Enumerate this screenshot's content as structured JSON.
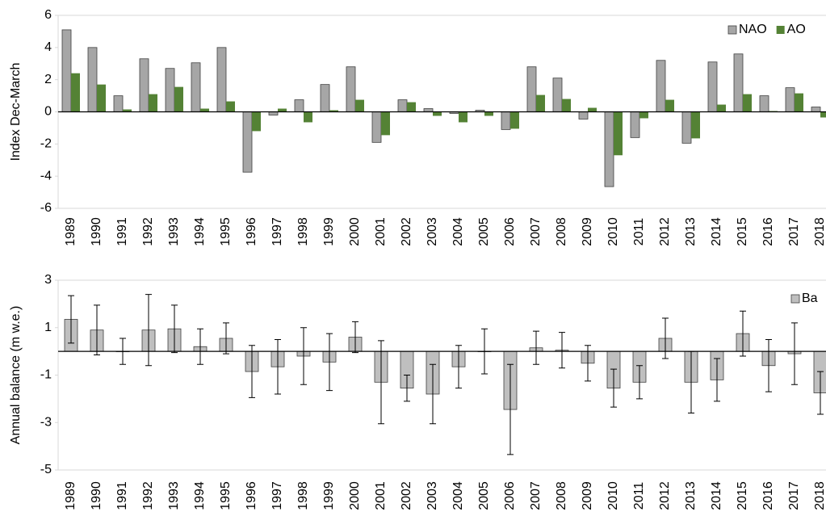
{
  "chart_data": [
    {
      "type": "bar",
      "y_label": "Index Dec-March",
      "categories": [
        "1989",
        "1990",
        "1991",
        "1992",
        "1993",
        "1994",
        "1995",
        "1996",
        "1997",
        "1998",
        "1999",
        "2000",
        "2001",
        "2002",
        "2003",
        "2004",
        "2005",
        "2006",
        "2007",
        "2008",
        "2009",
        "2010",
        "2011",
        "2012",
        "2013",
        "2014",
        "2015",
        "2016",
        "2017",
        "2018"
      ],
      "series": [
        {
          "name": "NAO",
          "color": "#a6a6a6",
          "values": [
            5.1,
            4.0,
            1.0,
            3.3,
            2.7,
            3.05,
            4.0,
            -3.75,
            -0.2,
            0.75,
            1.7,
            2.8,
            -1.9,
            0.75,
            0.2,
            -0.1,
            0.1,
            -1.1,
            2.8,
            2.1,
            -0.45,
            -4.65,
            -1.6,
            3.2,
            -1.95,
            3.1,
            3.6,
            1.0,
            1.5,
            0.3
          ]
        },
        {
          "name": "AO",
          "color": "#548235",
          "values": [
            2.4,
            1.7,
            0.15,
            1.1,
            1.55,
            0.2,
            0.65,
            -1.2,
            0.2,
            -0.65,
            0.1,
            0.75,
            -1.45,
            0.6,
            -0.25,
            -0.65,
            -0.25,
            -1.05,
            1.05,
            0.8,
            0.25,
            -2.7,
            -0.4,
            0.75,
            -1.65,
            0.45,
            1.1,
            0.05,
            1.15,
            -0.35
          ]
        }
      ],
      "ylim": [
        -6,
        6
      ],
      "yticks": [
        -6,
        -4,
        -2,
        0,
        2,
        4,
        6
      ],
      "legend": "upper right"
    },
    {
      "type": "bar",
      "y_label": "Annual balance (m w.e.)",
      "categories": [
        "1989",
        "1990",
        "1991",
        "1992",
        "1993",
        "1994",
        "1995",
        "1996",
        "1997",
        "1998",
        "1999",
        "2000",
        "2001",
        "2002",
        "2003",
        "2004",
        "2005",
        "2006",
        "2007",
        "2008",
        "2009",
        "2010",
        "2011",
        "2012",
        "2013",
        "2014",
        "2015",
        "2016",
        "2017",
        "2018"
      ],
      "series": [
        {
          "name": "Ba",
          "color": "#bfbfbf",
          "values": [
            1.35,
            0.9,
            0.0,
            0.9,
            0.95,
            0.2,
            0.55,
            -0.85,
            -0.65,
            -0.2,
            -0.45,
            0.6,
            -1.3,
            -1.55,
            -1.8,
            -0.65,
            0.0,
            -2.45,
            0.15,
            0.05,
            -0.5,
            -1.55,
            -1.3,
            0.55,
            -1.3,
            -1.2,
            0.75,
            -0.6,
            -0.1,
            -1.75
          ],
          "errors": [
            1.0,
            1.05,
            0.55,
            1.5,
            1.0,
            0.75,
            0.65,
            1.1,
            1.15,
            1.2,
            1.2,
            0.65,
            1.75,
            0.55,
            1.25,
            0.9,
            0.95,
            1.9,
            0.7,
            0.75,
            0.75,
            0.8,
            0.7,
            0.85,
            1.3,
            0.9,
            0.95,
            1.1,
            1.3,
            0.9
          ]
        }
      ],
      "ylim": [
        -5,
        3
      ],
      "yticks": [
        -5,
        -3,
        -1,
        1,
        3
      ],
      "legend": "upper right"
    }
  ]
}
